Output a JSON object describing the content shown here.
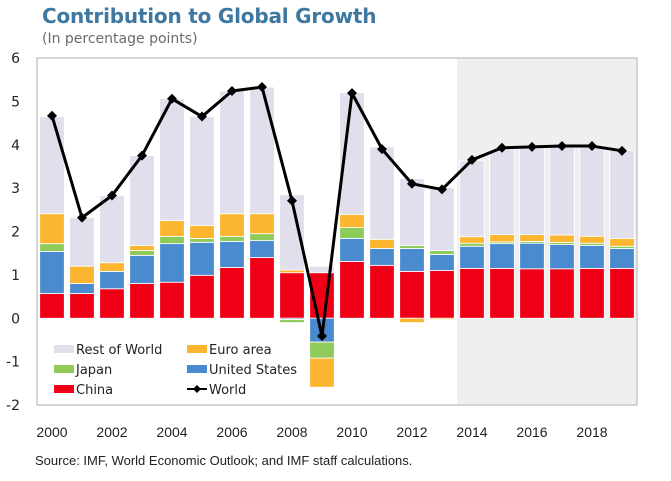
{
  "header": {
    "title": "Contribution to Global Growth",
    "subtitle": "(In percentage points)"
  },
  "footer": {
    "source": "Source: IMF, World Economic Outlook; and IMF staff calculations."
  },
  "colors": {
    "China": "#f00016",
    "United States": "#4a8bd0",
    "Japan": "#8ecb5a",
    "Euro area": "#fbb52e",
    "Rest of World": "#e1dfec",
    "World": "#000000",
    "forecast_shade": "#efefef",
    "frame": "#c8c8c8"
  },
  "chart_data": {
    "type": "bar",
    "stacked": true,
    "title": "Contribution to Global Growth",
    "subtitle": "(In percentage points)",
    "xlabel": "",
    "ylabel": "",
    "ylim": [
      -2,
      6
    ],
    "yticks": [
      6,
      5,
      4,
      3,
      2,
      1,
      0,
      -1,
      -2
    ],
    "x": [
      2000,
      2001,
      2002,
      2003,
      2004,
      2005,
      2006,
      2007,
      2008,
      2009,
      2010,
      2011,
      2012,
      2013,
      2014,
      2015,
      2016,
      2017,
      2018,
      2019
    ],
    "xtick_labels": [
      "2000",
      "2002",
      "2004",
      "2006",
      "2008",
      "2010",
      "2012",
      "2014",
      "2016",
      "2018"
    ],
    "forecast_shaded_from": 2014,
    "grid": false,
    "legend": {
      "placement": "bottom-left inside plot",
      "entries": [
        "Rest of World",
        "Euro area",
        "Japan",
        "United States",
        "China",
        "World"
      ]
    },
    "series": [
      {
        "name": "China",
        "kind": "bar",
        "values": [
          0.57,
          0.57,
          0.68,
          0.8,
          0.83,
          0.99,
          1.17,
          1.4,
          1.05,
          1.05,
          1.31,
          1.22,
          1.08,
          1.1,
          1.15,
          1.15,
          1.14,
          1.14,
          1.15,
          1.15
        ]
      },
      {
        "name": "United States",
        "kind": "bar",
        "values": [
          0.97,
          0.23,
          0.4,
          0.65,
          0.89,
          0.76,
          0.6,
          0.39,
          -0.03,
          -0.55,
          0.53,
          0.39,
          0.53,
          0.37,
          0.51,
          0.57,
          0.59,
          0.56,
          0.53,
          0.46
        ]
      },
      {
        "name": "Japan",
        "kind": "bar",
        "values": [
          0.18,
          0.0,
          0.0,
          0.11,
          0.17,
          0.09,
          0.12,
          0.16,
          -0.07,
          -0.37,
          0.25,
          0.0,
          0.07,
          0.09,
          0.07,
          0.04,
          0.04,
          0.05,
          0.05,
          0.05
        ]
      },
      {
        "name": "Euro area",
        "kind": "bar",
        "values": [
          0.69,
          0.4,
          0.2,
          0.12,
          0.36,
          0.3,
          0.52,
          0.46,
          0.06,
          -0.67,
          0.3,
          0.21,
          -0.1,
          -0.03,
          0.15,
          0.17,
          0.16,
          0.17,
          0.16,
          0.18
        ]
      },
      {
        "name": "Rest of World",
        "kind": "bar",
        "values": [
          2.24,
          1.12,
          1.55,
          2.07,
          2.81,
          2.51,
          2.83,
          2.92,
          1.74,
          0.15,
          2.81,
          2.13,
          1.54,
          1.45,
          1.75,
          1.97,
          2.0,
          2.05,
          2.08,
          2.03
        ]
      },
      {
        "name": "World",
        "kind": "line",
        "values": [
          4.67,
          2.32,
          2.83,
          3.75,
          5.06,
          4.65,
          5.24,
          5.33,
          2.71,
          -0.41,
          5.19,
          3.9,
          3.1,
          2.97,
          3.65,
          3.93,
          3.95,
          3.97,
          3.97,
          3.86
        ]
      }
    ]
  }
}
